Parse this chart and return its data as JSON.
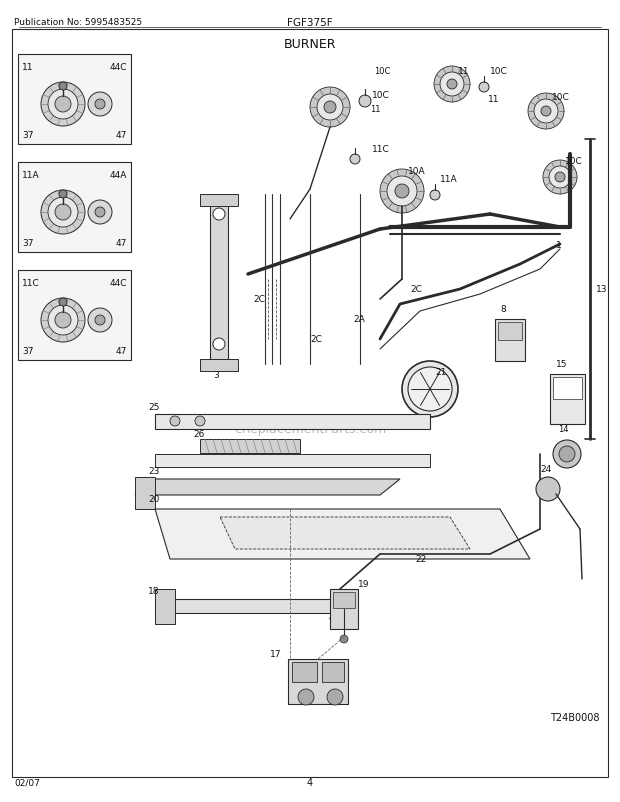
{
  "title": "BURNER",
  "subtitle": "FGF375F",
  "publication": "Publication No: 5995483525",
  "page_number": "4",
  "date": "02/07",
  "diagram_id": "T24B0008",
  "bg_color": "#ffffff",
  "line_color": "#2a2a2a",
  "text_color": "#111111",
  "watermark": "eReplacementParts.com",
  "fig_width": 6.2,
  "fig_height": 8.03,
  "dpi": 100
}
